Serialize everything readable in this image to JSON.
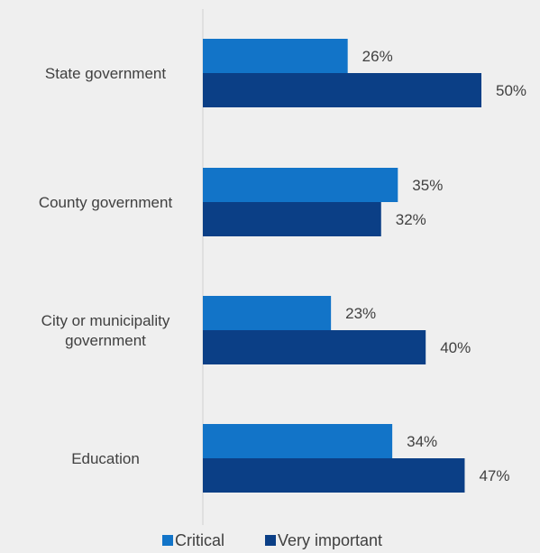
{
  "chart_data": {
    "type": "bar",
    "orientation": "horizontal",
    "categories": [
      [
        "State government"
      ],
      [
        "County government"
      ],
      [
        "City or municipality",
        "government"
      ],
      [
        "Education"
      ]
    ],
    "series": [
      {
        "name": "Critical",
        "values": [
          26,
          35,
          23,
          34
        ],
        "labels": [
          "26%",
          "35%",
          "23%",
          "34%"
        ],
        "color": "#1274c8"
      },
      {
        "name": "Very important",
        "values": [
          50,
          32,
          40,
          47
        ],
        "labels": [
          "50%",
          "32%",
          "40%",
          "47%"
        ],
        "color": "#0b3f86"
      }
    ],
    "xlim": [
      0,
      60
    ],
    "legend_position": "bottom",
    "grid": false
  },
  "colors": {
    "background": "#efefef",
    "axis_line": "#d0d0d0",
    "text": "#404040"
  }
}
